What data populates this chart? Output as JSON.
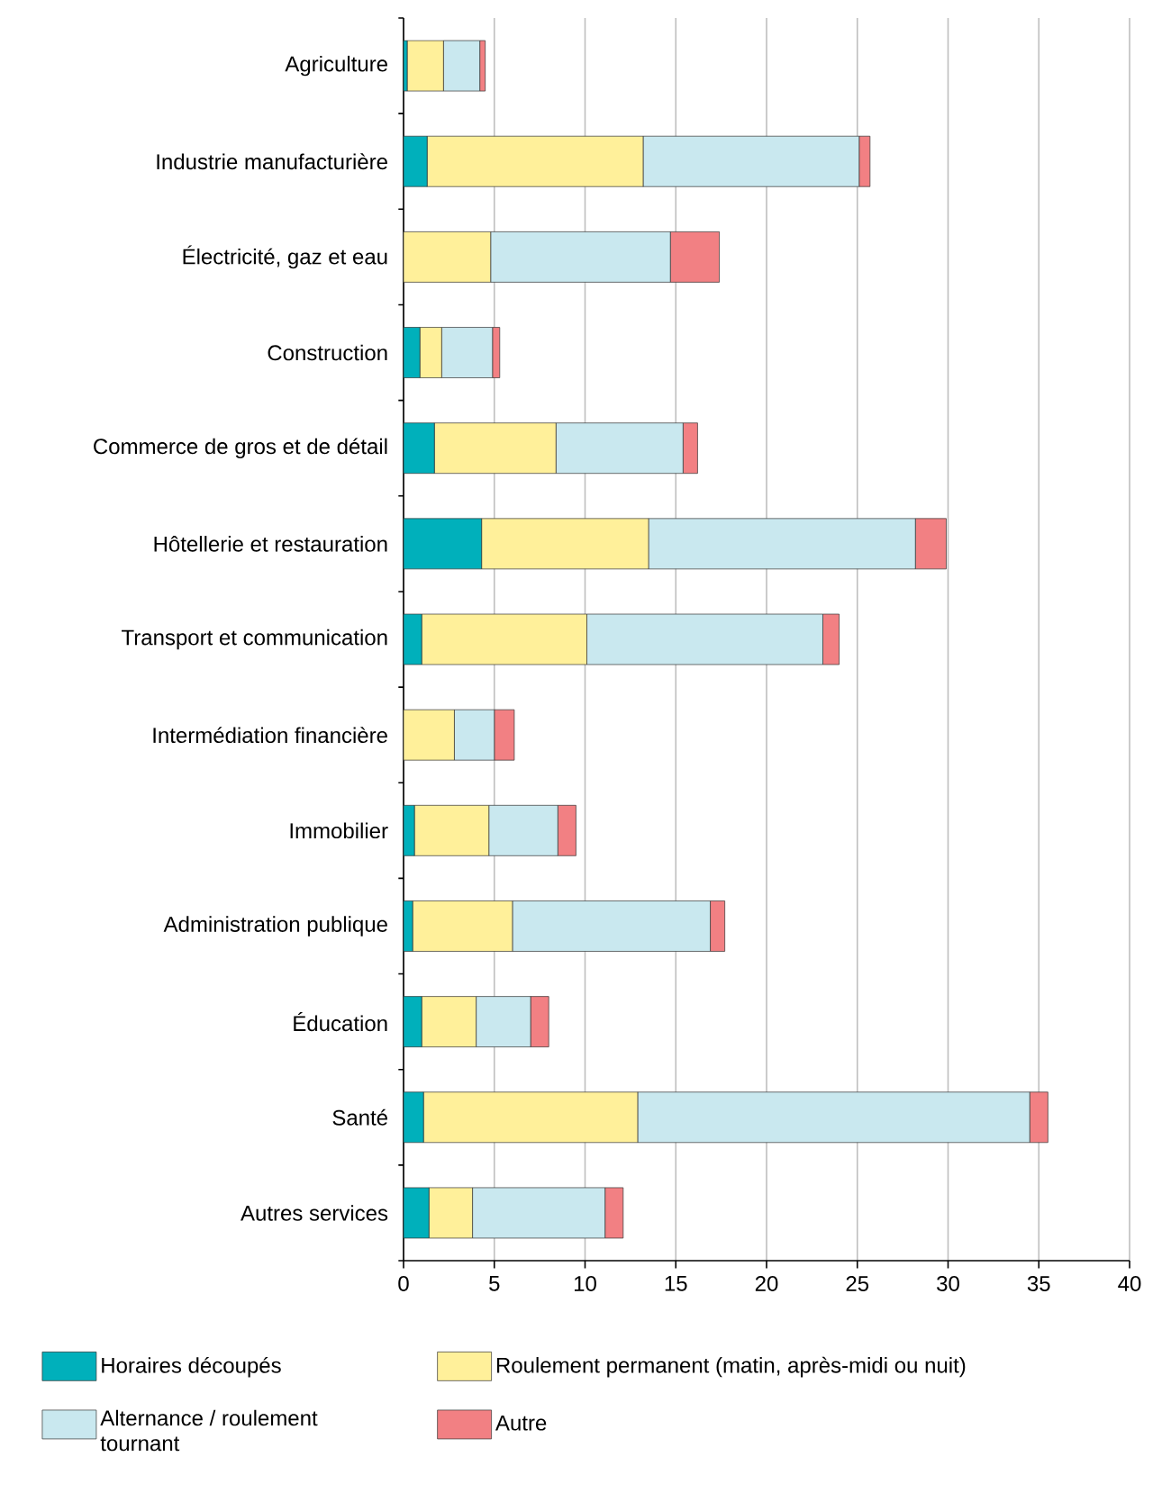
{
  "chart_data": {
    "type": "bar",
    "orientation": "horizontal",
    "stacked": true,
    "categories": [
      "Agriculture",
      "Industrie manufacturière",
      "Électricité, gaz et eau",
      "Construction",
      "Commerce de gros et de détail",
      "Hôtellerie et restauration",
      "Transport et communication",
      "Intermédiation financière",
      "Immobilier",
      "Administration publique",
      "Éducation",
      "Santé",
      "Autres services"
    ],
    "series": [
      {
        "name": "Horaires découpés",
        "color": "#00b0bb",
        "values": [
          0.2,
          1.3,
          0,
          0.9,
          1.7,
          4.3,
          1.0,
          0,
          0.6,
          0.5,
          1.0,
          1.1,
          1.4
        ]
      },
      {
        "name": "Roulement permanent (matin, après-midi ou nuit)",
        "color": "#fff09a",
        "values": [
          2.0,
          11.9,
          4.8,
          1.2,
          6.7,
          9.2,
          9.1,
          2.8,
          4.1,
          5.5,
          3.0,
          11.8,
          2.4
        ]
      },
      {
        "name": "Alternance / roulement tournant",
        "color": "#c9e8ef",
        "values": [
          2.0,
          11.9,
          9.9,
          2.8,
          7.0,
          14.7,
          13.0,
          2.2,
          3.8,
          10.9,
          3.0,
          21.6,
          7.3
        ]
      },
      {
        "name": "Autre",
        "color": "#f28083",
        "values": [
          0.3,
          0.6,
          2.7,
          0.4,
          0.8,
          1.7,
          0.9,
          1.1,
          1.0,
          0.8,
          1.0,
          1.0,
          1.0
        ]
      }
    ],
    "xlim": [
      0,
      40
    ],
    "xticks": [
      0,
      5,
      10,
      15,
      20,
      25,
      30,
      35,
      40
    ],
    "grid": "x",
    "legend": "bottom"
  }
}
